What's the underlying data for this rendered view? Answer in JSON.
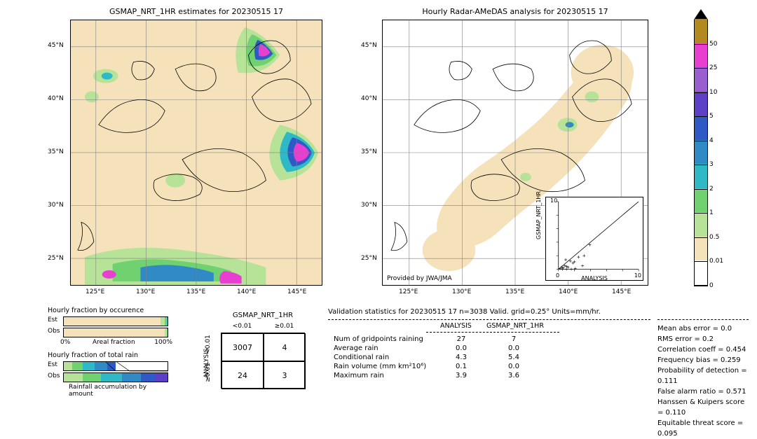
{
  "meta": {
    "date": "20230515 17",
    "product": "GSMAP_NRT_1HR",
    "analysis_name": "ANALYSIS"
  },
  "maps": {
    "left": {
      "title": "GSMAP_NRT_1HR estimates for 20230515 17",
      "xlabels": [
        "125°E",
        "130°E",
        "135°E",
        "140°E",
        "145°E"
      ],
      "ylabels": [
        "25°N",
        "30°N",
        "35°N",
        "40°N",
        "45°N"
      ],
      "background": "#f5e2bb"
    },
    "right": {
      "title": "Hourly Radar-AMeDAS analysis for 20230515 17",
      "xlabels": [
        "125°E",
        "130°E",
        "135°E",
        "140°E",
        "145°E"
      ],
      "ylabels": [
        "25°N",
        "30°N",
        "35°N",
        "40°N",
        "45°N"
      ],
      "background": "#ffffff",
      "provider": "Provided by JWA/JMA"
    }
  },
  "colorbar": {
    "ticks": [
      "0",
      "0.01",
      "0.5",
      "1",
      "2",
      "3",
      "4",
      "5",
      "10",
      "25",
      "50"
    ],
    "colors": [
      "#ffffff",
      "#f5e2bb",
      "#b6e398",
      "#6fd16f",
      "#2fb8c6",
      "#2f8ac6",
      "#2f5ac6",
      "#5c3fc6",
      "#9a5fcf",
      "#e83fd1",
      "#b38a1f"
    ],
    "arrow_top": "#000000"
  },
  "occurrence": {
    "title": "Hourly fraction by occurence",
    "rows": [
      "Est",
      "Obs"
    ],
    "xaxis_label": "Areal fraction",
    "xticks": [
      "0%",
      "100%"
    ],
    "est_segments": [
      {
        "color": "#f5e2bb",
        "w": 0.93
      },
      {
        "color": "#b6e398",
        "w": 0.04
      },
      {
        "color": "#6fd16f",
        "w": 0.02
      },
      {
        "color": "#2fb8c6",
        "w": 0.01
      }
    ],
    "obs_segments": [
      {
        "color": "#f5e2bb",
        "w": 0.97
      },
      {
        "color": "#b6e398",
        "w": 0.02
      },
      {
        "color": "#6fd16f",
        "w": 0.01
      }
    ]
  },
  "totalrain": {
    "title": "Hourly fraction of total rain",
    "rows": [
      "Est",
      "Obs"
    ],
    "footer": "Rainfall accumulation by amount",
    "est_segments": [
      {
        "color": "#b6e398",
        "w": 0.08
      },
      {
        "color": "#6fd16f",
        "w": 0.1
      },
      {
        "color": "#2fb8c6",
        "w": 0.12
      },
      {
        "color": "#2f8ac6",
        "w": 0.12
      },
      {
        "color": "#2f5ac6",
        "w": 0.08
      },
      {
        "color": "#ffffff",
        "w": 0.5
      }
    ],
    "obs_segments": [
      {
        "color": "#b6e398",
        "w": 0.18
      },
      {
        "color": "#6fd16f",
        "w": 0.18
      },
      {
        "color": "#2fb8c6",
        "w": 0.2
      },
      {
        "color": "#2f8ac6",
        "w": 0.18
      },
      {
        "color": "#2f5ac6",
        "w": 0.14
      },
      {
        "color": "#5c3fc6",
        "w": 0.12
      }
    ]
  },
  "confusion": {
    "title": "GSMAP_NRT_1HR",
    "col_headers": [
      "<0.01",
      "≥0.01"
    ],
    "row_headers": [
      "<0.01",
      "≥0.01"
    ],
    "ylabel": "ANALYSIS",
    "cells": [
      [
        "3007",
        "4"
      ],
      [
        "24",
        "3"
      ]
    ]
  },
  "scatter": {
    "xlabel": "ANALYSIS",
    "ylabel": "GSMAP_NRT_1HR",
    "xlim": [
      0,
      10
    ],
    "ylim": [
      0,
      10
    ],
    "ticks": [
      0,
      2,
      4,
      6,
      8,
      10
    ],
    "points": [
      [
        0.2,
        0.1
      ],
      [
        0.4,
        0.3
      ],
      [
        0.6,
        0.2
      ],
      [
        0.8,
        0.5
      ],
      [
        1.0,
        0.4
      ],
      [
        1.2,
        0.3
      ],
      [
        1.5,
        1.2
      ],
      [
        1.8,
        0.9
      ],
      [
        2.0,
        1.1
      ],
      [
        2.5,
        1.8
      ],
      [
        3.0,
        0.5
      ],
      [
        3.2,
        2.0
      ],
      [
        3.9,
        3.6
      ],
      [
        0.5,
        0.0
      ],
      [
        1.0,
        0.0
      ],
      [
        1.6,
        0.0
      ],
      [
        2.1,
        0.1
      ],
      [
        0.9,
        1.4
      ]
    ]
  },
  "validation": {
    "title": "Validation statistics for 20230515 17  n=3038 Valid. grid=0.25° Units=mm/hr.",
    "col_headers": [
      "ANALYSIS",
      "GSMAP_NRT_1HR"
    ],
    "rows": [
      {
        "label": "Num of gridpoints raining",
        "a": "27",
        "b": "7"
      },
      {
        "label": "Average rain",
        "a": "0.0",
        "b": "0.0"
      },
      {
        "label": "Conditional rain",
        "a": "4.3",
        "b": "5.4"
      },
      {
        "label": "Rain volume (mm km²10⁶)",
        "a": "0.1",
        "b": "0.0"
      },
      {
        "label": "Maximum rain",
        "a": "3.9",
        "b": "3.6"
      }
    ],
    "right": [
      "Mean abs error =   0.0",
      "RMS error =    0.2",
      "Correlation coeff =  0.454",
      "Frequency bias =  0.259",
      "Probability of detection =  0.111",
      "False alarm ratio =  0.571",
      "Hanssen & Kuipers score =  0.110",
      "Equitable threat score =  0.095"
    ]
  }
}
